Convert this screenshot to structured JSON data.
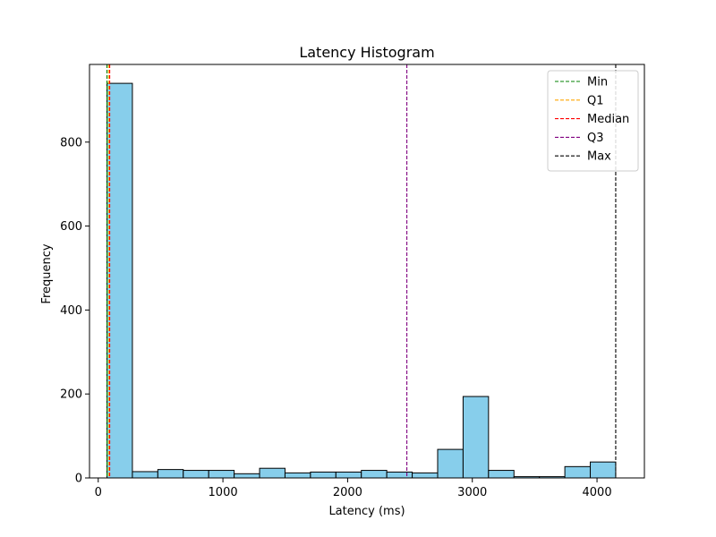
{
  "chart_data": {
    "type": "bar",
    "title": "Latency Histogram",
    "xlabel": "Latency (ms)",
    "ylabel": "Frequency",
    "xlim": [
      -70,
      4380
    ],
    "ylim": [
      0,
      985
    ],
    "x_ticks": [
      0,
      1000,
      2000,
      3000,
      4000
    ],
    "y_ticks": [
      0,
      200,
      400,
      600,
      800
    ],
    "bar_color": "#87CEEB",
    "bar_edge_color": "#000000",
    "bins": [
      {
        "start": 70,
        "end": 274,
        "value": 940
      },
      {
        "start": 274,
        "end": 478,
        "value": 15
      },
      {
        "start": 478,
        "end": 682,
        "value": 20
      },
      {
        "start": 682,
        "end": 886,
        "value": 18
      },
      {
        "start": 886,
        "end": 1090,
        "value": 18
      },
      {
        "start": 1090,
        "end": 1294,
        "value": 10
      },
      {
        "start": 1294,
        "end": 1498,
        "value": 23
      },
      {
        "start": 1498,
        "end": 1702,
        "value": 12
      },
      {
        "start": 1702,
        "end": 1906,
        "value": 14
      },
      {
        "start": 1906,
        "end": 2110,
        "value": 14
      },
      {
        "start": 2110,
        "end": 2314,
        "value": 18
      },
      {
        "start": 2314,
        "end": 2518,
        "value": 14
      },
      {
        "start": 2518,
        "end": 2722,
        "value": 12
      },
      {
        "start": 2722,
        "end": 2926,
        "value": 68
      },
      {
        "start": 2926,
        "end": 3130,
        "value": 194
      },
      {
        "start": 3130,
        "end": 3334,
        "value": 18
      },
      {
        "start": 3334,
        "end": 3538,
        "value": 3
      },
      {
        "start": 3538,
        "end": 3742,
        "value": 3
      },
      {
        "start": 3742,
        "end": 3946,
        "value": 27
      },
      {
        "start": 3946,
        "end": 4150,
        "value": 38
      }
    ],
    "reference_lines": [
      {
        "name": "Min",
        "x": 70,
        "color": "#008000"
      },
      {
        "name": "Q1",
        "x": 83,
        "color": "#FFA500"
      },
      {
        "name": "Median",
        "x": 92,
        "color": "#FF0000"
      },
      {
        "name": "Q3",
        "x": 2475,
        "color": "#800080"
      },
      {
        "name": "Max",
        "x": 4150,
        "color": "#000000"
      }
    ],
    "legend_position": "top-right",
    "grid": false
  }
}
